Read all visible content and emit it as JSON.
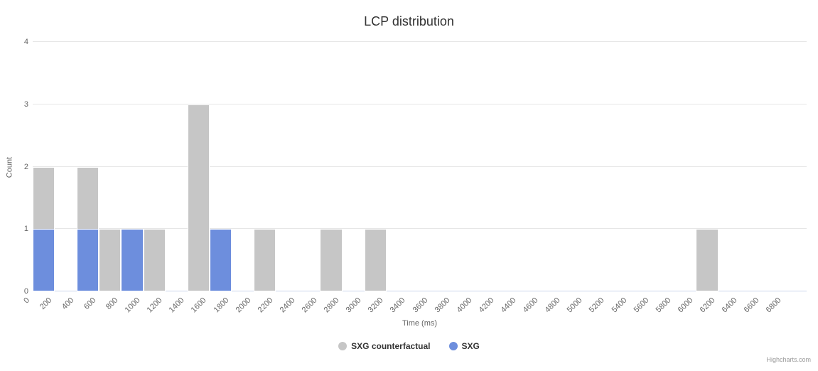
{
  "title": "LCP distribution",
  "credits": "Highcharts.com",
  "chart_data": {
    "type": "bar",
    "subtype": "histogram-column",
    "title": "LCP distribution",
    "xlabel": "Time (ms)",
    "ylabel": "Count",
    "ylim": [
      0,
      4
    ],
    "yticks": [
      0,
      1,
      2,
      3,
      4
    ],
    "bin_width": 200,
    "x_ticks": [
      0,
      200,
      400,
      600,
      800,
      1000,
      1200,
      1400,
      1600,
      1800,
      2000,
      2200,
      2400,
      2600,
      2800,
      3000,
      3200,
      3400,
      3600,
      3800,
      4000,
      4200,
      4400,
      4600,
      4800,
      5000,
      5200,
      5400,
      5600,
      5800,
      6000,
      6200,
      6400,
      6600,
      6800
    ],
    "grid": true,
    "legend_position": "bottom-center",
    "series": [
      {
        "name": "SXG counterfactual",
        "color": "#c6c6c6",
        "data": [
          [
            0,
            2
          ],
          [
            400,
            2
          ],
          [
            600,
            1
          ],
          [
            1000,
            1
          ],
          [
            1400,
            3
          ],
          [
            2000,
            1
          ],
          [
            2600,
            1
          ],
          [
            3000,
            1
          ],
          [
            6000,
            1
          ]
        ]
      },
      {
        "name": "SXG",
        "color": "#6d8edd",
        "data": [
          [
            0,
            1
          ],
          [
            400,
            1
          ],
          [
            800,
            1
          ],
          [
            1600,
            1
          ]
        ]
      }
    ]
  }
}
